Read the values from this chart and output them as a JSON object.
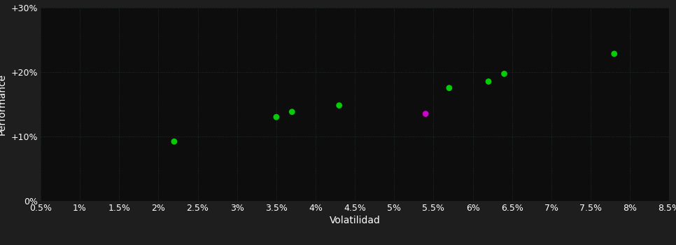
{
  "background_color": "#1e1e1e",
  "plot_bg_color": "#0d0d0d",
  "grid_color": "#2d4a2d",
  "text_color": "#ffffff",
  "xlabel": "Volatilidad",
  "ylabel": "Performance",
  "xlim": [
    0.005,
    0.085
  ],
  "ylim": [
    0.0,
    0.3
  ],
  "xticks": [
    0.005,
    0.01,
    0.015,
    0.02,
    0.025,
    0.03,
    0.035,
    0.04,
    0.045,
    0.05,
    0.055,
    0.06,
    0.065,
    0.07,
    0.075,
    0.08,
    0.085
  ],
  "xtick_labels": [
    "0.5%",
    "1%",
    "1.5%",
    "2%",
    "2.5%",
    "3%",
    "3.5%",
    "4%",
    "4.5%",
    "5%",
    "5.5%",
    "6%",
    "6.5%",
    "7%",
    "7.5%",
    "8%",
    "8.5%"
  ],
  "yticks": [
    0.0,
    0.1,
    0.2,
    0.3
  ],
  "ytick_labels": [
    "0%",
    "+10%",
    "+20%",
    "+30%"
  ],
  "points_green": [
    [
      0.022,
      0.092
    ],
    [
      0.035,
      0.13
    ],
    [
      0.037,
      0.138
    ],
    [
      0.043,
      0.148
    ],
    [
      0.057,
      0.175
    ],
    [
      0.062,
      0.185
    ],
    [
      0.064,
      0.197
    ],
    [
      0.078,
      0.228
    ]
  ],
  "points_magenta": [
    [
      0.054,
      0.135
    ]
  ],
  "green_color": "#00cc00",
  "magenta_color": "#cc00cc",
  "marker_size": 40,
  "font_size": 9,
  "grid_linestyle": ":",
  "grid_linewidth": 0.6,
  "grid_alpha": 0.7
}
